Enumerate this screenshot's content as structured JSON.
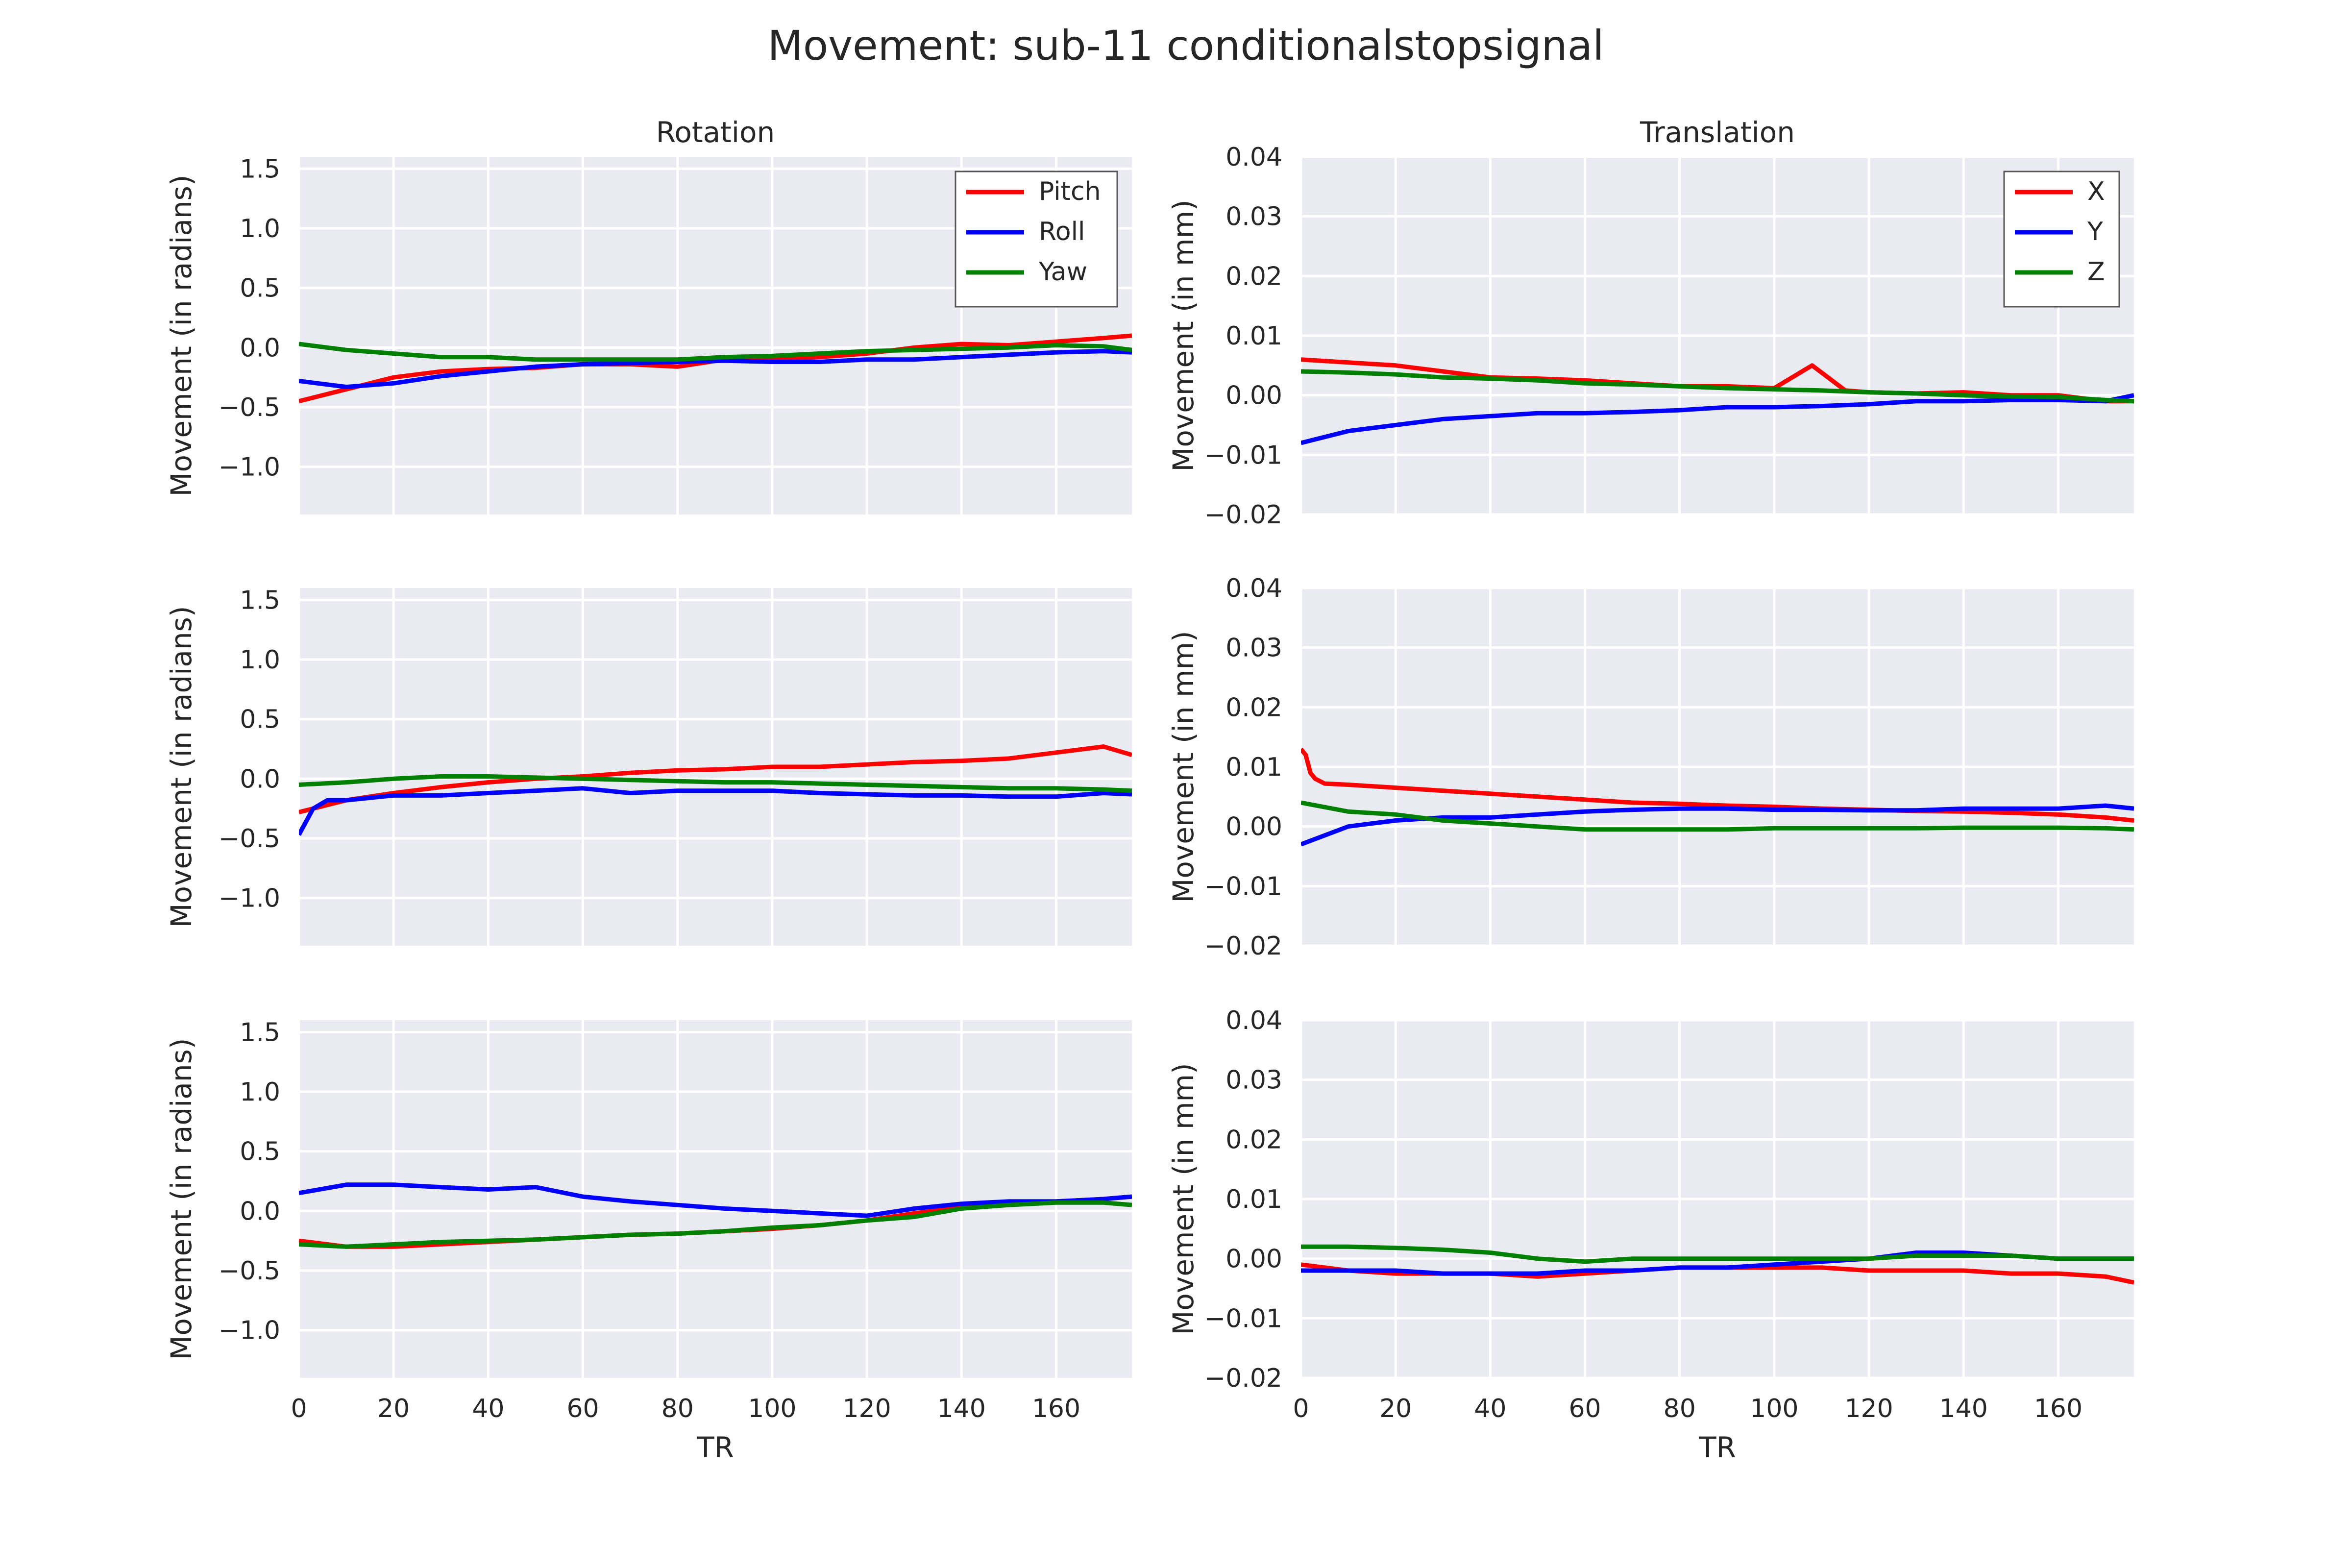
{
  "title": "Movement: sub-11 conditionalstopsignal",
  "chart_data": [
    {
      "type": "line",
      "row": 0,
      "col": 0,
      "title": "Rotation",
      "xlabel": "",
      "ylabel": "Movement (in radians)",
      "xlim": [
        0,
        176
      ],
      "ylim": [
        -1.4,
        1.6
      ],
      "xticks": [
        0,
        20,
        40,
        60,
        80,
        100,
        120,
        140,
        160
      ],
      "yticks": [
        -1.0,
        -0.5,
        0.0,
        0.5,
        1.0,
        1.5
      ],
      "yticklabels": [
        "−1.0",
        "−0.5",
        "0.0",
        "0.5",
        "1.0",
        "1.5"
      ],
      "grid": true,
      "legend": "top-right",
      "series": [
        {
          "name": "Pitch",
          "color": "#ff0000",
          "x": [
            0,
            10,
            20,
            30,
            40,
            50,
            60,
            70,
            80,
            90,
            100,
            110,
            120,
            130,
            140,
            150,
            160,
            170,
            176
          ],
          "values": [
            -0.45,
            -0.35,
            -0.25,
            -0.2,
            -0.18,
            -0.17,
            -0.14,
            -0.14,
            -0.16,
            -0.1,
            -0.1,
            -0.08,
            -0.05,
            0.0,
            0.03,
            0.02,
            0.05,
            0.08,
            0.1
          ]
        },
        {
          "name": "Roll",
          "color": "#0000ff",
          "x": [
            0,
            10,
            20,
            30,
            40,
            50,
            60,
            70,
            80,
            90,
            100,
            110,
            120,
            130,
            140,
            150,
            160,
            170,
            176
          ],
          "values": [
            -0.28,
            -0.33,
            -0.3,
            -0.24,
            -0.2,
            -0.16,
            -0.14,
            -0.13,
            -0.12,
            -0.11,
            -0.12,
            -0.12,
            -0.1,
            -0.1,
            -0.08,
            -0.06,
            -0.04,
            -0.03,
            -0.04
          ]
        },
        {
          "name": "Yaw",
          "color": "#008000",
          "x": [
            0,
            10,
            20,
            30,
            40,
            50,
            60,
            70,
            80,
            90,
            100,
            110,
            120,
            130,
            140,
            150,
            160,
            170,
            176
          ],
          "values": [
            0.03,
            -0.02,
            -0.05,
            -0.08,
            -0.08,
            -0.1,
            -0.1,
            -0.1,
            -0.1,
            -0.08,
            -0.07,
            -0.05,
            -0.03,
            -0.02,
            -0.01,
            0.0,
            0.02,
            0.01,
            -0.02
          ]
        }
      ]
    },
    {
      "type": "line",
      "row": 0,
      "col": 1,
      "title": "Translation",
      "xlabel": "",
      "ylabel": "Movement (in mm)",
      "xlim": [
        0,
        176
      ],
      "ylim": [
        -0.02,
        0.04
      ],
      "xticks": [
        0,
        20,
        40,
        60,
        80,
        100,
        120,
        140,
        160
      ],
      "yticks": [
        -0.02,
        -0.01,
        0.0,
        0.01,
        0.02,
        0.03,
        0.04
      ],
      "yticklabels": [
        "−0.02",
        "−0.01",
        "0.00",
        "0.01",
        "0.02",
        "0.03",
        "0.04"
      ],
      "grid": true,
      "legend": "top-right",
      "series": [
        {
          "name": "X",
          "color": "#ff0000",
          "x": [
            0,
            10,
            20,
            30,
            40,
            50,
            60,
            70,
            80,
            90,
            100,
            108,
            115,
            120,
            130,
            140,
            150,
            160,
            170,
            176
          ],
          "values": [
            0.006,
            0.0055,
            0.005,
            0.004,
            0.003,
            0.0028,
            0.0025,
            0.002,
            0.0015,
            0.0015,
            0.0012,
            0.005,
            0.0008,
            0.0005,
            0.0003,
            0.0005,
            0.0,
            0.0,
            -0.001,
            -0.001
          ]
        },
        {
          "name": "Y",
          "color": "#0000ff",
          "x": [
            0,
            10,
            20,
            30,
            40,
            50,
            60,
            70,
            80,
            90,
            100,
            110,
            120,
            130,
            140,
            150,
            160,
            170,
            176
          ],
          "values": [
            -0.008,
            -0.006,
            -0.005,
            -0.004,
            -0.0035,
            -0.003,
            -0.003,
            -0.0028,
            -0.0025,
            -0.002,
            -0.002,
            -0.0018,
            -0.0015,
            -0.001,
            -0.001,
            -0.0008,
            -0.0008,
            -0.001,
            0.0
          ]
        },
        {
          "name": "Z",
          "color": "#008000",
          "x": [
            0,
            10,
            20,
            30,
            40,
            50,
            60,
            70,
            80,
            90,
            100,
            110,
            120,
            130,
            140,
            150,
            160,
            170,
            176
          ],
          "values": [
            0.004,
            0.0038,
            0.0035,
            0.003,
            0.0028,
            0.0025,
            0.002,
            0.0018,
            0.0015,
            0.0012,
            0.001,
            0.0008,
            0.0005,
            0.0003,
            0.0,
            -0.0002,
            -0.0003,
            -0.0008,
            -0.001
          ]
        }
      ]
    },
    {
      "type": "line",
      "row": 1,
      "col": 0,
      "title": "",
      "xlabel": "",
      "ylabel": "Movement (in radians)",
      "xlim": [
        0,
        176
      ],
      "ylim": [
        -1.4,
        1.6
      ],
      "xticks": [
        0,
        20,
        40,
        60,
        80,
        100,
        120,
        140,
        160
      ],
      "yticks": [
        -1.0,
        -0.5,
        0.0,
        0.5,
        1.0,
        1.5
      ],
      "yticklabels": [
        "−1.0",
        "−0.5",
        "0.0",
        "0.5",
        "1.0",
        "1.5"
      ],
      "grid": true,
      "series": [
        {
          "color": "#ff0000",
          "x": [
            0,
            10,
            20,
            30,
            40,
            50,
            60,
            70,
            80,
            90,
            100,
            110,
            120,
            130,
            140,
            150,
            160,
            170,
            176
          ],
          "values": [
            -0.28,
            -0.18,
            -0.12,
            -0.07,
            -0.03,
            0.0,
            0.02,
            0.05,
            0.07,
            0.08,
            0.1,
            0.1,
            0.12,
            0.14,
            0.15,
            0.17,
            0.22,
            0.27,
            0.2
          ]
        },
        {
          "color": "#0000ff",
          "x": [
            0,
            3,
            6,
            10,
            20,
            30,
            40,
            50,
            60,
            70,
            80,
            90,
            100,
            110,
            120,
            130,
            140,
            150,
            160,
            170,
            176
          ],
          "values": [
            -0.47,
            -0.25,
            -0.18,
            -0.18,
            -0.14,
            -0.14,
            -0.12,
            -0.1,
            -0.08,
            -0.12,
            -0.1,
            -0.1,
            -0.1,
            -0.12,
            -0.13,
            -0.14,
            -0.14,
            -0.15,
            -0.15,
            -0.12,
            -0.13
          ]
        },
        {
          "color": "#008000",
          "x": [
            0,
            10,
            20,
            30,
            40,
            50,
            60,
            70,
            80,
            90,
            100,
            110,
            120,
            130,
            140,
            150,
            160,
            170,
            176
          ],
          "values": [
            -0.05,
            -0.03,
            0.0,
            0.02,
            0.02,
            0.01,
            0.0,
            -0.01,
            -0.02,
            -0.03,
            -0.03,
            -0.04,
            -0.05,
            -0.06,
            -0.07,
            -0.08,
            -0.08,
            -0.09,
            -0.1
          ]
        }
      ]
    },
    {
      "type": "line",
      "row": 1,
      "col": 1,
      "title": "",
      "xlabel": "",
      "ylabel": "Movement (in mm)",
      "xlim": [
        0,
        176
      ],
      "ylim": [
        -0.02,
        0.04
      ],
      "xticks": [
        0,
        20,
        40,
        60,
        80,
        100,
        120,
        140,
        160
      ],
      "yticks": [
        -0.02,
        -0.01,
        0.0,
        0.01,
        0.02,
        0.03,
        0.04
      ],
      "yticklabels": [
        "−0.02",
        "−0.01",
        "0.00",
        "0.01",
        "0.02",
        "0.03",
        "0.04"
      ],
      "grid": true,
      "series": [
        {
          "color": "#ff0000",
          "x": [
            0,
            1,
            2,
            3,
            5,
            10,
            20,
            30,
            40,
            50,
            60,
            70,
            80,
            90,
            100,
            110,
            120,
            130,
            140,
            150,
            160,
            170,
            176
          ],
          "values": [
            0.013,
            0.012,
            0.009,
            0.008,
            0.0072,
            0.007,
            0.0065,
            0.006,
            0.0055,
            0.005,
            0.0045,
            0.004,
            0.0038,
            0.0035,
            0.0033,
            0.003,
            0.0028,
            0.0026,
            0.0025,
            0.0023,
            0.002,
            0.0015,
            0.001
          ]
        },
        {
          "color": "#0000ff",
          "x": [
            0,
            5,
            10,
            20,
            30,
            40,
            50,
            60,
            70,
            80,
            90,
            100,
            110,
            120,
            130,
            140,
            150,
            160,
            170,
            176
          ],
          "values": [
            -0.003,
            -0.0015,
            0.0,
            0.001,
            0.0015,
            0.0015,
            0.002,
            0.0025,
            0.0028,
            0.003,
            0.003,
            0.0028,
            0.0028,
            0.0027,
            0.0027,
            0.003,
            0.003,
            0.003,
            0.0035,
            0.003
          ]
        },
        {
          "color": "#008000",
          "x": [
            0,
            10,
            20,
            30,
            40,
            50,
            60,
            70,
            80,
            90,
            100,
            110,
            120,
            130,
            140,
            150,
            160,
            170,
            176
          ],
          "values": [
            0.004,
            0.0025,
            0.002,
            0.001,
            0.0005,
            0.0,
            -0.0005,
            -0.0005,
            -0.0005,
            -0.0005,
            -0.0003,
            -0.0003,
            -0.0003,
            -0.0003,
            -0.0002,
            -0.0002,
            -0.0002,
            -0.0003,
            -0.0005
          ]
        }
      ]
    },
    {
      "type": "line",
      "row": 2,
      "col": 0,
      "title": "",
      "xlabel": "TR",
      "ylabel": "Movement (in radians)",
      "xlim": [
        0,
        176
      ],
      "ylim": [
        -1.4,
        1.6
      ],
      "xticks": [
        0,
        20,
        40,
        60,
        80,
        100,
        120,
        140,
        160
      ],
      "yticks": [
        -1.0,
        -0.5,
        0.0,
        0.5,
        1.0,
        1.5
      ],
      "yticklabels": [
        "−1.0",
        "−0.5",
        "0.0",
        "0.5",
        "1.0",
        "1.5"
      ],
      "grid": true,
      "series": [
        {
          "color": "#ff0000",
          "x": [
            0,
            10,
            20,
            30,
            40,
            50,
            60,
            70,
            80,
            90,
            100,
            110,
            120,
            130,
            140,
            150,
            160,
            170,
            176
          ],
          "values": [
            -0.25,
            -0.3,
            -0.3,
            -0.28,
            -0.26,
            -0.24,
            -0.22,
            -0.2,
            -0.19,
            -0.17,
            -0.15,
            -0.12,
            -0.08,
            -0.02,
            0.03,
            0.05,
            0.08,
            0.1,
            0.12
          ]
        },
        {
          "color": "#0000ff",
          "x": [
            0,
            10,
            20,
            30,
            40,
            50,
            60,
            70,
            80,
            90,
            100,
            110,
            120,
            130,
            140,
            150,
            160,
            170,
            176
          ],
          "values": [
            0.15,
            0.22,
            0.22,
            0.2,
            0.18,
            0.2,
            0.12,
            0.08,
            0.05,
            0.02,
            0.0,
            -0.02,
            -0.04,
            0.02,
            0.06,
            0.08,
            0.08,
            0.1,
            0.12
          ]
        },
        {
          "color": "#008000",
          "x": [
            0,
            10,
            20,
            30,
            40,
            50,
            60,
            70,
            80,
            90,
            100,
            110,
            120,
            130,
            140,
            150,
            160,
            170,
            176
          ],
          "values": [
            -0.28,
            -0.3,
            -0.28,
            -0.26,
            -0.25,
            -0.24,
            -0.22,
            -0.2,
            -0.19,
            -0.17,
            -0.14,
            -0.12,
            -0.08,
            -0.05,
            0.02,
            0.05,
            0.07,
            0.07,
            0.05
          ]
        }
      ]
    },
    {
      "type": "line",
      "row": 2,
      "col": 1,
      "title": "",
      "xlabel": "TR",
      "ylabel": "Movement (in mm)",
      "xlim": [
        0,
        176
      ],
      "ylim": [
        -0.02,
        0.04
      ],
      "xticks": [
        0,
        20,
        40,
        60,
        80,
        100,
        120,
        140,
        160
      ],
      "yticks": [
        -0.02,
        -0.01,
        0.0,
        0.01,
        0.02,
        0.03,
        0.04
      ],
      "yticklabels": [
        "−0.02",
        "−0.01",
        "0.00",
        "0.01",
        "0.02",
        "0.03",
        "0.04"
      ],
      "grid": true,
      "series": [
        {
          "color": "#ff0000",
          "x": [
            0,
            10,
            20,
            30,
            40,
            50,
            60,
            70,
            80,
            90,
            100,
            110,
            120,
            130,
            140,
            150,
            160,
            170,
            176
          ],
          "values": [
            -0.001,
            -0.002,
            -0.0025,
            -0.0025,
            -0.0025,
            -0.003,
            -0.0025,
            -0.002,
            -0.0015,
            -0.0015,
            -0.0015,
            -0.0015,
            -0.002,
            -0.002,
            -0.002,
            -0.0025,
            -0.0025,
            -0.003,
            -0.004
          ]
        },
        {
          "color": "#0000ff",
          "x": [
            0,
            10,
            20,
            30,
            40,
            50,
            60,
            70,
            80,
            90,
            100,
            110,
            120,
            130,
            140,
            150,
            160,
            170,
            176
          ],
          "values": [
            -0.002,
            -0.002,
            -0.002,
            -0.0025,
            -0.0025,
            -0.0025,
            -0.002,
            -0.002,
            -0.0015,
            -0.0015,
            -0.001,
            -0.0005,
            0.0,
            0.001,
            0.001,
            0.0005,
            0.0,
            0.0,
            0.0
          ]
        },
        {
          "color": "#008000",
          "x": [
            0,
            10,
            20,
            30,
            40,
            50,
            60,
            70,
            80,
            90,
            100,
            110,
            120,
            130,
            140,
            150,
            160,
            170,
            176
          ],
          "values": [
            0.002,
            0.002,
            0.0018,
            0.0015,
            0.001,
            0.0,
            -0.0005,
            0.0,
            0.0,
            0.0,
            0.0,
            0.0,
            0.0,
            0.0005,
            0.0005,
            0.0005,
            0.0,
            0.0,
            0.0
          ]
        }
      ]
    }
  ]
}
